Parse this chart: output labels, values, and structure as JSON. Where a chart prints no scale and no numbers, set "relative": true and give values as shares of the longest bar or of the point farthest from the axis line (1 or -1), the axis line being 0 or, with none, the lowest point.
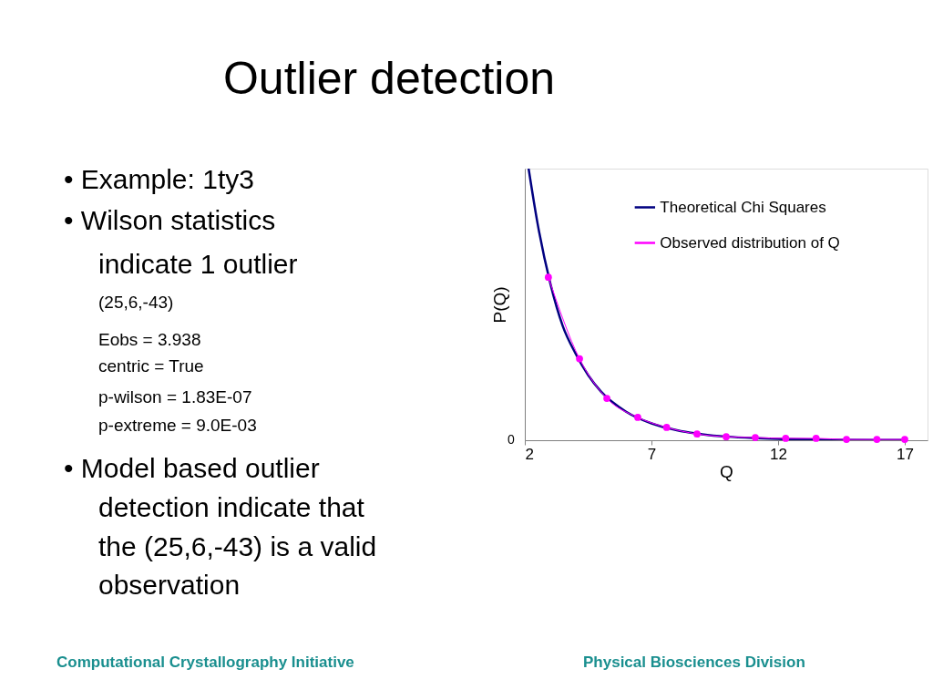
{
  "chart_data": {
    "type": "line",
    "title": "Outlier detection",
    "xlabel": "Q",
    "ylabel": "P(Q)",
    "relative": true,
    "xlim": [
      2,
      17.9
    ],
    "xticks": [
      2,
      7,
      12,
      17
    ],
    "grid": false,
    "legend": "top right",
    "series": [
      {
        "name": "Theoretical Chi Squares",
        "color": "#000080",
        "marker": "none",
        "x": [
          2.15,
          2.5,
          3,
          3.5,
          4,
          4.5,
          5,
          6,
          7,
          8,
          9,
          10,
          11,
          12,
          14,
          17
        ],
        "values": [
          1.0,
          0.8,
          0.58,
          0.42,
          0.32,
          0.24,
          0.18,
          0.105,
          0.062,
          0.037,
          0.022,
          0.013,
          0.008,
          0.005,
          0.002,
          0.001
        ]
      },
      {
        "name": "Observed distribution of Q",
        "color": "#ff00ff",
        "marker": "circle",
        "x": [
          2.93,
          4.16,
          5.24,
          6.46,
          7.6,
          8.8,
          9.95,
          11.1,
          12.3,
          13.5,
          14.7,
          15.9,
          17.0
        ],
        "values": [
          0.6,
          0.3,
          0.154,
          0.084,
          0.047,
          0.023,
          0.013,
          0.01,
          0.007,
          0.007,
          0.003,
          0.003,
          0.003
        ]
      }
    ],
    "annotations": [
      "• Example: 1ty3",
      "• Wilson statistics",
      "indicate 1 outlier",
      "(25,6,-43)",
      "Eobs = 3.938",
      "centric = True",
      "p-wilson = 1.83E-07",
      "p-extreme = 9.0E-03",
      "• Model based outlier",
      "detection indicate that",
      "the (25,6,-43) is a valid",
      "observation",
      "Computational Crystallography Initiative",
      "Physical Biosciences Division",
      "0"
    ]
  }
}
